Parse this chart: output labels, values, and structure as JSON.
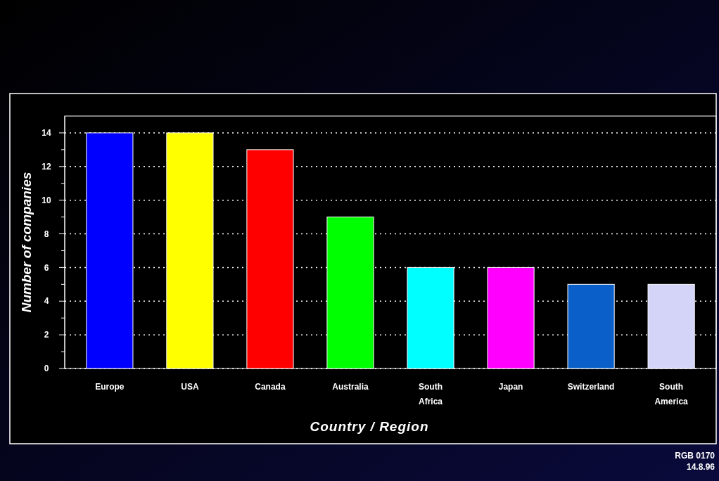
{
  "chart_data": {
    "type": "bar",
    "xlabel": "Country / Region",
    "ylabel": "Number of companies",
    "categories": [
      "Europe",
      "USA",
      "Canada",
      "Australia",
      "South Africa",
      "Japan",
      "Switzerland",
      "South America"
    ],
    "values": [
      14,
      14,
      13,
      9,
      6,
      6,
      5,
      5
    ],
    "colors": [
      "#0000ff",
      "#ffff00",
      "#ff0000",
      "#00ff00",
      "#00ffff",
      "#ff00ff",
      "#0a5fc8",
      "#d4d4f8"
    ],
    "ylim": [
      0,
      15
    ],
    "yticks": [
      0,
      {
        "value": 1,
        "label": null
      },
      2,
      {
        "value": 3,
        "label": null
      },
      4,
      {
        "value": 5,
        "label": null
      },
      6,
      {
        "value": 7,
        "label": null
      },
      8,
      {
        "value": 9,
        "label": null
      },
      10,
      {
        "value": 11,
        "label": null
      },
      12,
      {
        "value": 13,
        "label": null
      },
      14
    ],
    "grid": "y",
    "annotations": [
      "RGB 0170",
      "14.8.96"
    ]
  }
}
